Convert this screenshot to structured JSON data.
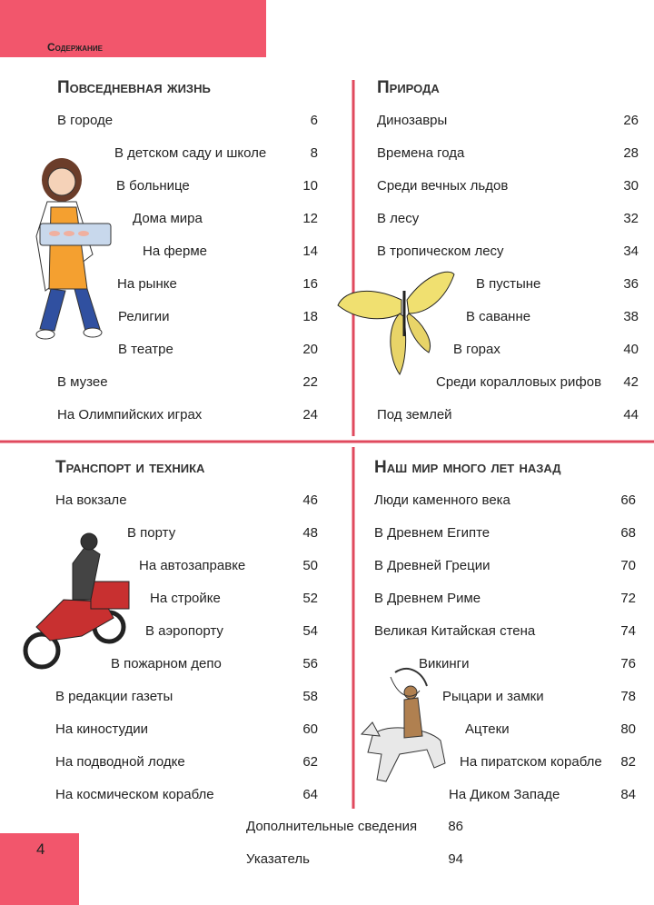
{
  "header": {
    "label": "Содержание"
  },
  "sections": [
    {
      "title": "Повседневная жизнь",
      "entries": [
        {
          "label": "В городе",
          "page": 6
        },
        {
          "label": "В детском саду и школе",
          "page": 8
        },
        {
          "label": "В больнице",
          "page": 10
        },
        {
          "label": "Дома мира",
          "page": 12
        },
        {
          "label": "На ферме",
          "page": 14
        },
        {
          "label": "На рынке",
          "page": 16
        },
        {
          "label": "Религии",
          "page": 18
        },
        {
          "label": "В театре",
          "page": 20
        },
        {
          "label": "В музее",
          "page": 22
        },
        {
          "label": "На Олимпийских играх",
          "page": 24
        }
      ]
    },
    {
      "title": "Природа",
      "entries": [
        {
          "label": "Динозавры",
          "page": 26
        },
        {
          "label": "Времена года",
          "page": 28
        },
        {
          "label": "Среди вечных льдов",
          "page": 30
        },
        {
          "label": "В лесу",
          "page": 32
        },
        {
          "label": "В тропическом лесу",
          "page": 34
        },
        {
          "label": "В пустыне",
          "page": 36
        },
        {
          "label": "В саванне",
          "page": 38
        },
        {
          "label": "В горах",
          "page": 40
        },
        {
          "label": "Среди коралловых рифов",
          "page": 42
        },
        {
          "label": "Под землей",
          "page": 44
        }
      ]
    },
    {
      "title": "Транспорт и техника",
      "entries": [
        {
          "label": "На вокзале",
          "page": 46
        },
        {
          "label": "В порту",
          "page": 48
        },
        {
          "label": "На автозаправке",
          "page": 50
        },
        {
          "label": "На стройке",
          "page": 52
        },
        {
          "label": "В аэропорту",
          "page": 54
        },
        {
          "label": "В пожарном депо",
          "page": 56
        },
        {
          "label": "В редакции газеты",
          "page": 58
        },
        {
          "label": "На киностудии",
          "page": 60
        },
        {
          "label": "На подводной лодке",
          "page": 62
        },
        {
          "label": "На космическом корабле",
          "page": 64
        }
      ]
    },
    {
      "title": "Наш мир много лет назад",
      "entries": [
        {
          "label": "Люди каменного века",
          "page": 66
        },
        {
          "label": "В Древнем Египте",
          "page": 68
        },
        {
          "label": "В Древней Греции",
          "page": 70
        },
        {
          "label": "В Древнем Риме",
          "page": 72
        },
        {
          "label": "Великая Китайская стена",
          "page": 74
        },
        {
          "label": "Викинги",
          "page": 76
        },
        {
          "label": "Рыцари и замки",
          "page": 78
        },
        {
          "label": "Ацтеки",
          "page": 80
        },
        {
          "label": "На пиратском корабле",
          "page": 82
        },
        {
          "label": "На Диком Западе",
          "page": 84
        }
      ]
    }
  ],
  "footer": {
    "entries": [
      {
        "label": "Дополнительные сведения",
        "page": 86
      },
      {
        "label": "Указатель",
        "page": 94
      }
    ],
    "page_number": 4
  }
}
